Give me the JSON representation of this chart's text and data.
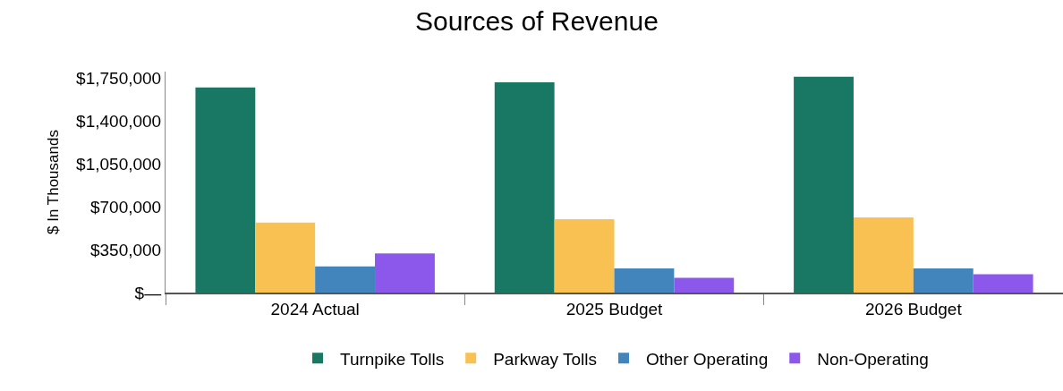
{
  "chart_data": {
    "type": "bar",
    "title": "Sources of Revenue",
    "ylabel": "$ In Thousands",
    "categories": [
      "2024 Actual",
      "2025 Budget",
      "2026 Budget"
    ],
    "series": [
      {
        "name": "Turnpike Tolls",
        "color": "#197864",
        "values": [
          1670000,
          1712000,
          1758000
        ]
      },
      {
        "name": "Parkway Tolls",
        "color": "#f9c152",
        "values": [
          570000,
          598000,
          612000
        ]
      },
      {
        "name": "Other Operating",
        "color": "#4285bc",
        "values": [
          213000,
          196000,
          196000
        ]
      },
      {
        "name": "Non-Operating",
        "color": "#8c58ec",
        "values": [
          318000,
          121000,
          150000
        ]
      }
    ],
    "ylim": [
      0,
      1800000
    ],
    "yticks": [
      {
        "value": 0,
        "label": "$—"
      },
      {
        "value": 350000,
        "label": "$350,000"
      },
      {
        "value": 700000,
        "label": "$700,000"
      },
      {
        "value": 1050000,
        "label": "$1,050,000"
      },
      {
        "value": 1400000,
        "label": "$1,400,000"
      },
      {
        "value": 1750000,
        "label": "$1,750,000"
      }
    ],
    "grid": false,
    "legend": "bottom"
  }
}
